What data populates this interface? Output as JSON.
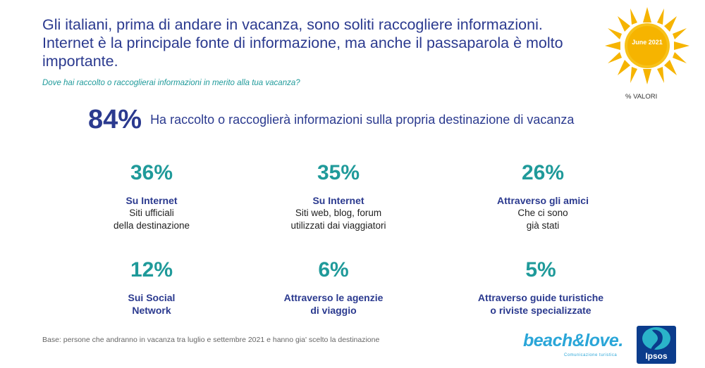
{
  "title": "Gli italiani, prima di andare in vacanza, sono soliti raccogliere informazioni. Internet è la principale fonte di informazione, ma anche il passaparola è molto importante.",
  "question": "Dove hai raccolto o raccoglierai informazioni in merito alla tua vacanza?",
  "badge": "June 2021",
  "valori_label": "% VALORI",
  "headline": {
    "pct": "84%",
    "text": "Ha raccolto o raccoglierà informazioni sulla propria destinazione di vacanza"
  },
  "stats": [
    {
      "pct": "36%",
      "label": "Su Internet",
      "desc1": "Siti ufficiali",
      "desc2": "della destinazione"
    },
    {
      "pct": "35%",
      "label": "Su Internet",
      "desc1": "Siti web, blog, forum",
      "desc2": "utilizzati dai viaggiatori"
    },
    {
      "pct": "26%",
      "label": "Attraverso gli amici",
      "desc1": "Che ci sono",
      "desc2": "già stati"
    },
    {
      "pct": "12%",
      "label1": "Sui Social",
      "label2": "Network"
    },
    {
      "pct": "6%",
      "label1": "Attraverso le agenzie",
      "label2": "di viaggio"
    },
    {
      "pct": "5%",
      "label1": "Attraverso guide turistiche",
      "label2": "o riviste specializzate"
    }
  ],
  "base": "Base: persone che andranno in vacanza tra luglio e settembre 2021 e hanno gia' scelto la destinazione",
  "brand": {
    "name": "beach&love.",
    "sub": "Comunicazione turistica"
  },
  "ipsos": "Ipsos",
  "colors": {
    "navy": "#2b3a8f",
    "teal": "#1f9a9a",
    "sun": "#f6b400",
    "ipsos": "#0b3c8c"
  }
}
